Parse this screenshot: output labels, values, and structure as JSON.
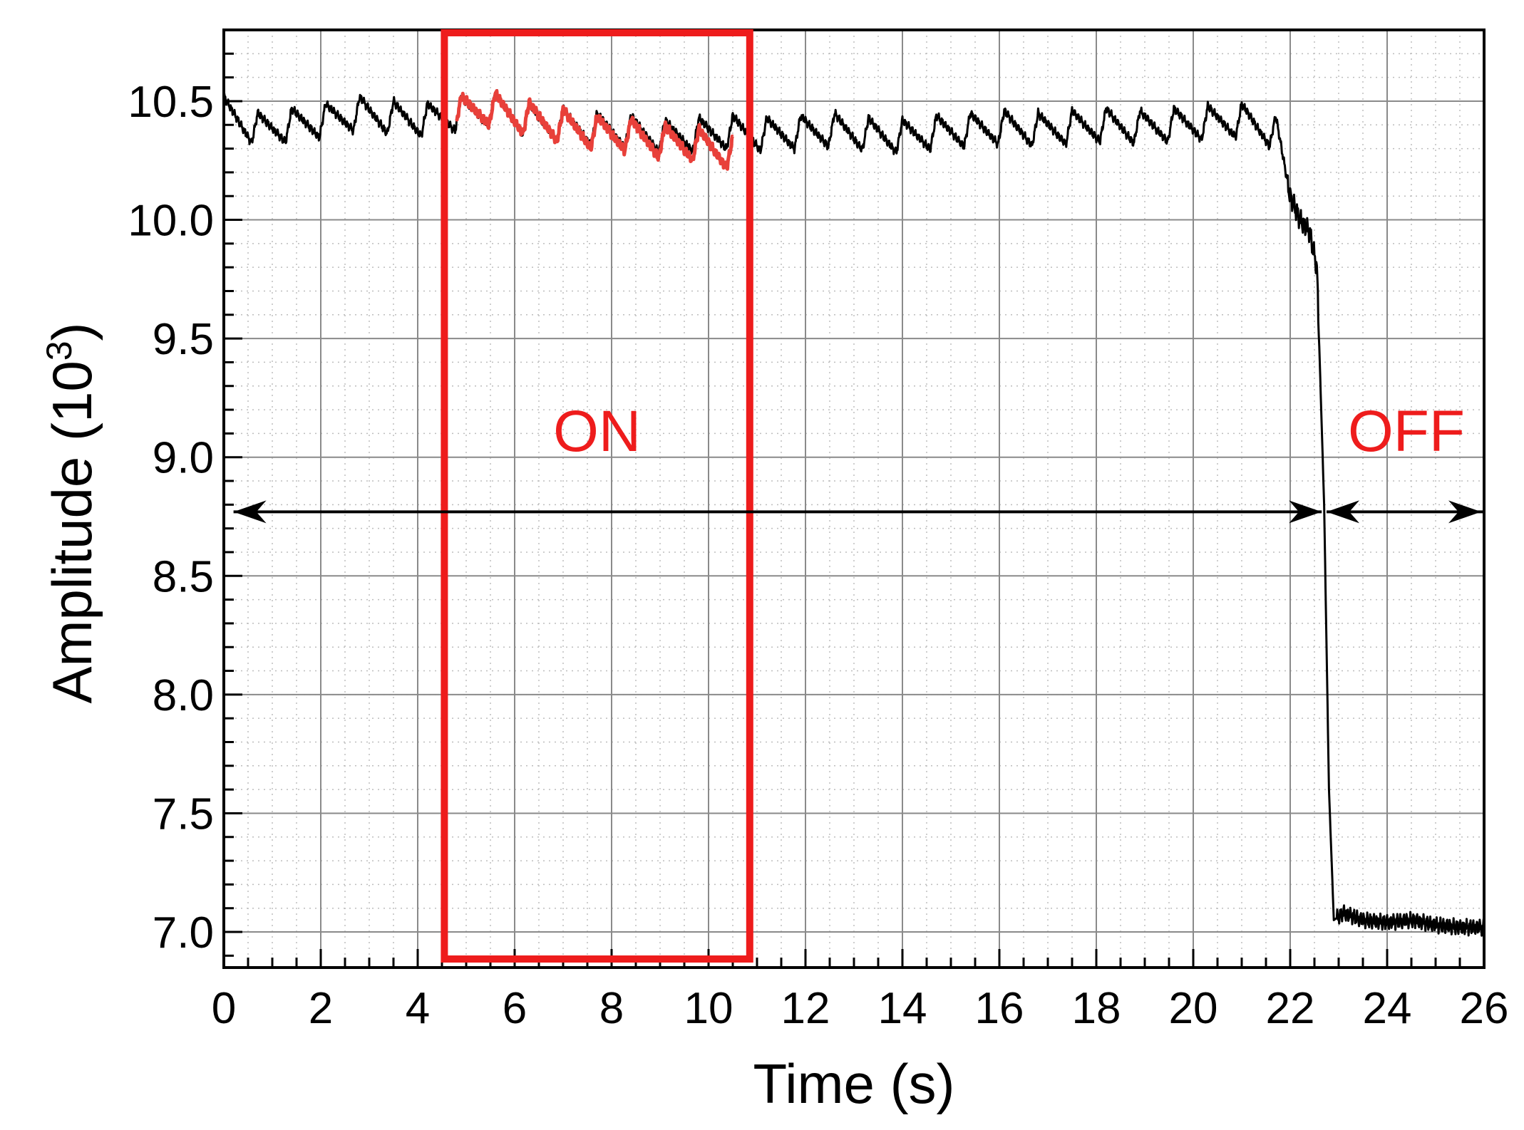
{
  "chart_data": {
    "type": "line",
    "xlabel": "Time (s)",
    "ylabel": "Amplitude (10³)",
    "ylabel_main": "Amplitude (10",
    "ylabel_sup": "3",
    "ylabel_close": ")",
    "xlim": [
      0,
      26
    ],
    "ylim": [
      6.85,
      10.8
    ],
    "x_ticks": [
      0,
      2,
      4,
      6,
      8,
      10,
      12,
      14,
      16,
      18,
      20,
      22,
      24,
      26
    ],
    "x_tick_labels": [
      "0",
      "2",
      "4",
      "6",
      "8",
      "10",
      "12",
      "14",
      "16",
      "18",
      "20",
      "22",
      "24",
      "26"
    ],
    "y_ticks": [
      7.0,
      7.5,
      8.0,
      8.5,
      9.0,
      9.5,
      10.0,
      10.5
    ],
    "y_tick_labels": [
      "7.0",
      "7.5",
      "8.0",
      "8.5",
      "9.0",
      "9.5",
      "10.0",
      "10.5"
    ],
    "grid": true,
    "series": [
      {
        "color": "#000000",
        "x": [
          0,
          0.7,
          1.4,
          2.1,
          2.8,
          3.5,
          4.2,
          4.9,
          5.6,
          6.3,
          7.0,
          7.7,
          8.4,
          9.1,
          9.8,
          10.5,
          11.2,
          11.9,
          12.6,
          13.3,
          14.0,
          14.7,
          15.4,
          16.1,
          16.8,
          17.5,
          18.2,
          18.9,
          19.6,
          20.3,
          21.0,
          21.7,
          22.0,
          22.2,
          22.4,
          22.55,
          22.7,
          22.8,
          22.9,
          23.1,
          23.5,
          24.0,
          24.5,
          25.0,
          25.5,
          26.0
        ],
        "y": [
          10.45,
          10.38,
          10.4,
          10.42,
          10.45,
          10.43,
          10.42,
          10.45,
          10.47,
          10.42,
          10.4,
          10.38,
          10.37,
          10.35,
          10.36,
          10.37,
          10.36,
          10.37,
          10.38,
          10.36,
          10.35,
          10.37,
          10.38,
          10.39,
          10.38,
          10.39,
          10.4,
          10.39,
          10.4,
          10.41,
          10.42,
          10.37,
          10.1,
          10.0,
          9.95,
          9.8,
          8.8,
          7.6,
          7.05,
          7.08,
          7.05,
          7.04,
          7.05,
          7.03,
          7.02,
          7.02
        ]
      },
      {
        "color": "#e8403a",
        "x": [
          4.8,
          5.5,
          6.2,
          6.9,
          7.6,
          8.3,
          9.0,
          9.7,
          10.5
        ],
        "y": [
          10.45,
          10.47,
          10.43,
          10.4,
          10.37,
          10.36,
          10.33,
          10.32,
          10.28
        ]
      }
    ],
    "annotations": {
      "on_label": "ON",
      "off_label": "OFF",
      "on_window_x": [
        4.55,
        10.85
      ],
      "on_arrow_x": [
        0.2,
        22.65
      ],
      "off_arrow_x": [
        22.75,
        26.0
      ],
      "arrow_y": 8.77,
      "accent_color": "#ee1c1c"
    }
  }
}
